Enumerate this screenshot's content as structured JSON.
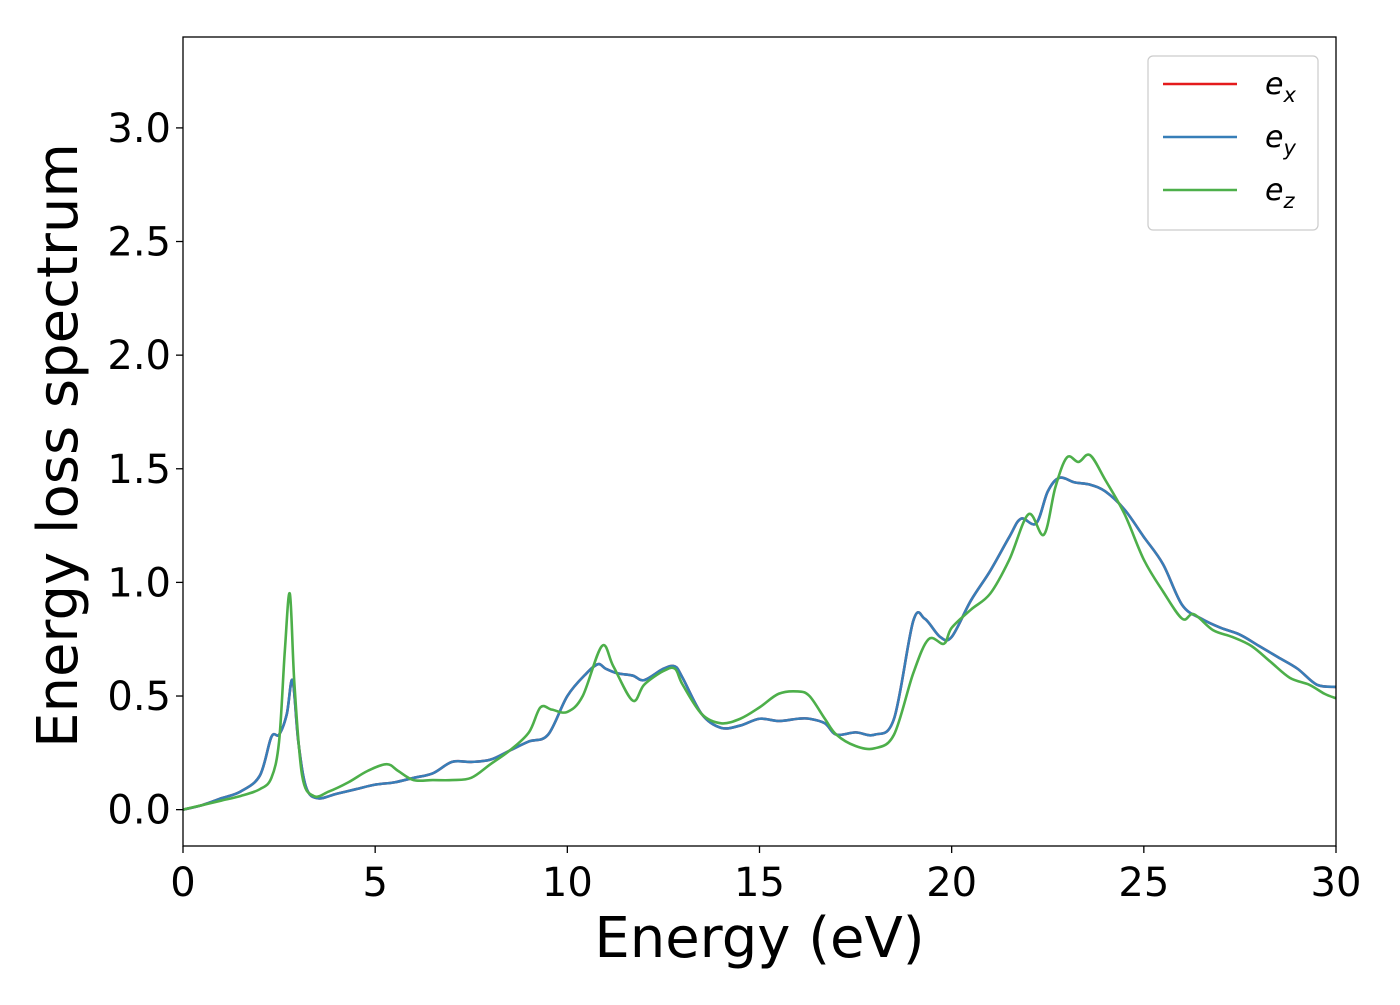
{
  "chart_data": {
    "type": "line",
    "title": "",
    "xlabel": "Energy (eV)",
    "ylabel": "Energy loss spectrum",
    "xlim": [
      0,
      30
    ],
    "ylim": [
      -0.16,
      3.4
    ],
    "xticks": [
      0,
      5,
      10,
      15,
      20,
      25,
      30
    ],
    "xtick_labels": [
      "0",
      "5",
      "10",
      "15",
      "20",
      "25",
      "30"
    ],
    "yticks": [
      0.0,
      0.5,
      1.0,
      1.5,
      2.0,
      2.5,
      3.0
    ],
    "ytick_labels": [
      "0.0",
      "0.5",
      "1.0",
      "1.5",
      "2.0",
      "2.5",
      "3.0"
    ],
    "grid": false,
    "legend_position": "top-right",
    "legend": [
      {
        "base": "e",
        "sub": "x",
        "color": "#e41a1c"
      },
      {
        "base": "e",
        "sub": "y",
        "color": "#377eb8"
      },
      {
        "base": "e",
        "sub": "z",
        "color": "#4daf4a"
      }
    ],
    "series": [
      {
        "name": "e_x",
        "color": "#e41a1c",
        "x": [
          0,
          0.5,
          1.0,
          1.5,
          2.0,
          2.3,
          2.5,
          2.7,
          2.85,
          3.0,
          3.2,
          3.5,
          4.0,
          4.5,
          5.0,
          5.5,
          6.0,
          6.5,
          7.0,
          7.5,
          8.0,
          8.5,
          9.0,
          9.5,
          10.0,
          10.5,
          10.8,
          11.0,
          11.3,
          11.7,
          12.0,
          12.5,
          12.8,
          13.0,
          13.5,
          14.0,
          14.5,
          15.0,
          15.5,
          16.0,
          16.3,
          16.7,
          17.0,
          17.5,
          18.0,
          18.5,
          19.0,
          19.3,
          19.7,
          20.0,
          20.5,
          21.0,
          21.5,
          21.8,
          22.2,
          22.5,
          22.8,
          23.2,
          23.6,
          24.0,
          24.5,
          25.0,
          25.5,
          26.0,
          26.5,
          27.0,
          27.5,
          28.0,
          28.5,
          29.0,
          29.5,
          30.0
        ],
        "y": [
          0.0,
          0.02,
          0.05,
          0.08,
          0.15,
          0.32,
          0.33,
          0.42,
          0.57,
          0.3,
          0.1,
          0.05,
          0.07,
          0.09,
          0.11,
          0.12,
          0.14,
          0.16,
          0.21,
          0.21,
          0.22,
          0.26,
          0.3,
          0.33,
          0.5,
          0.6,
          0.64,
          0.62,
          0.6,
          0.59,
          0.57,
          0.62,
          0.63,
          0.58,
          0.42,
          0.36,
          0.37,
          0.4,
          0.39,
          0.4,
          0.4,
          0.38,
          0.33,
          0.34,
          0.33,
          0.4,
          0.83,
          0.84,
          0.76,
          0.76,
          0.92,
          1.05,
          1.2,
          1.28,
          1.26,
          1.4,
          1.46,
          1.44,
          1.43,
          1.4,
          1.32,
          1.2,
          1.08,
          0.9,
          0.84,
          0.8,
          0.77,
          0.72,
          0.67,
          0.62,
          0.55,
          0.54
        ]
      },
      {
        "name": "e_y",
        "color": "#377eb8",
        "x": [
          0,
          0.5,
          1.0,
          1.5,
          2.0,
          2.3,
          2.5,
          2.7,
          2.85,
          3.0,
          3.2,
          3.5,
          4.0,
          4.5,
          5.0,
          5.5,
          6.0,
          6.5,
          7.0,
          7.5,
          8.0,
          8.5,
          9.0,
          9.5,
          10.0,
          10.5,
          10.8,
          11.0,
          11.3,
          11.7,
          12.0,
          12.5,
          12.8,
          13.0,
          13.5,
          14.0,
          14.5,
          15.0,
          15.5,
          16.0,
          16.3,
          16.7,
          17.0,
          17.5,
          18.0,
          18.5,
          19.0,
          19.3,
          19.7,
          20.0,
          20.5,
          21.0,
          21.5,
          21.8,
          22.2,
          22.5,
          22.8,
          23.2,
          23.6,
          24.0,
          24.5,
          25.0,
          25.5,
          26.0,
          26.5,
          27.0,
          27.5,
          28.0,
          28.5,
          29.0,
          29.5,
          30.0
        ],
        "y": [
          0.0,
          0.02,
          0.05,
          0.08,
          0.15,
          0.32,
          0.33,
          0.42,
          0.57,
          0.3,
          0.1,
          0.05,
          0.07,
          0.09,
          0.11,
          0.12,
          0.14,
          0.16,
          0.21,
          0.21,
          0.22,
          0.26,
          0.3,
          0.33,
          0.5,
          0.6,
          0.64,
          0.62,
          0.6,
          0.59,
          0.57,
          0.62,
          0.63,
          0.58,
          0.42,
          0.36,
          0.37,
          0.4,
          0.39,
          0.4,
          0.4,
          0.38,
          0.33,
          0.34,
          0.33,
          0.4,
          0.83,
          0.84,
          0.76,
          0.76,
          0.92,
          1.05,
          1.2,
          1.28,
          1.26,
          1.4,
          1.46,
          1.44,
          1.43,
          1.4,
          1.32,
          1.2,
          1.08,
          0.9,
          0.84,
          0.8,
          0.77,
          0.72,
          0.67,
          0.62,
          0.55,
          0.54
        ]
      },
      {
        "name": "e_z",
        "color": "#4daf4a",
        "x": [
          0,
          0.5,
          1.0,
          1.5,
          2.0,
          2.3,
          2.5,
          2.65,
          2.78,
          2.9,
          3.1,
          3.4,
          3.8,
          4.3,
          4.8,
          5.3,
          5.6,
          6.0,
          6.5,
          7.0,
          7.5,
          8.0,
          8.5,
          9.0,
          9.3,
          9.6,
          10.0,
          10.4,
          10.9,
          11.2,
          11.7,
          12.0,
          12.5,
          12.8,
          13.0,
          13.5,
          14.0,
          14.5,
          15.0,
          15.5,
          16.0,
          16.3,
          16.7,
          17.0,
          17.5,
          18.0,
          18.5,
          19.0,
          19.4,
          19.8,
          20.0,
          20.5,
          21.0,
          21.5,
          22.0,
          22.4,
          22.7,
          23.0,
          23.3,
          23.6,
          24.0,
          24.5,
          25.0,
          25.5,
          26.0,
          26.3,
          26.8,
          27.3,
          27.8,
          28.3,
          28.8,
          29.3,
          29.7,
          30.0
        ],
        "y": [
          0.0,
          0.02,
          0.04,
          0.06,
          0.09,
          0.14,
          0.3,
          0.7,
          0.95,
          0.55,
          0.15,
          0.06,
          0.08,
          0.12,
          0.17,
          0.2,
          0.17,
          0.13,
          0.13,
          0.13,
          0.14,
          0.2,
          0.26,
          0.34,
          0.45,
          0.44,
          0.43,
          0.5,
          0.72,
          0.63,
          0.48,
          0.55,
          0.61,
          0.62,
          0.55,
          0.42,
          0.38,
          0.4,
          0.45,
          0.51,
          0.52,
          0.5,
          0.4,
          0.33,
          0.28,
          0.27,
          0.33,
          0.6,
          0.75,
          0.73,
          0.8,
          0.88,
          0.95,
          1.1,
          1.3,
          1.21,
          1.42,
          1.55,
          1.53,
          1.56,
          1.45,
          1.3,
          1.1,
          0.96,
          0.84,
          0.86,
          0.79,
          0.76,
          0.72,
          0.65,
          0.58,
          0.55,
          0.51,
          0.49
        ]
      }
    ]
  }
}
